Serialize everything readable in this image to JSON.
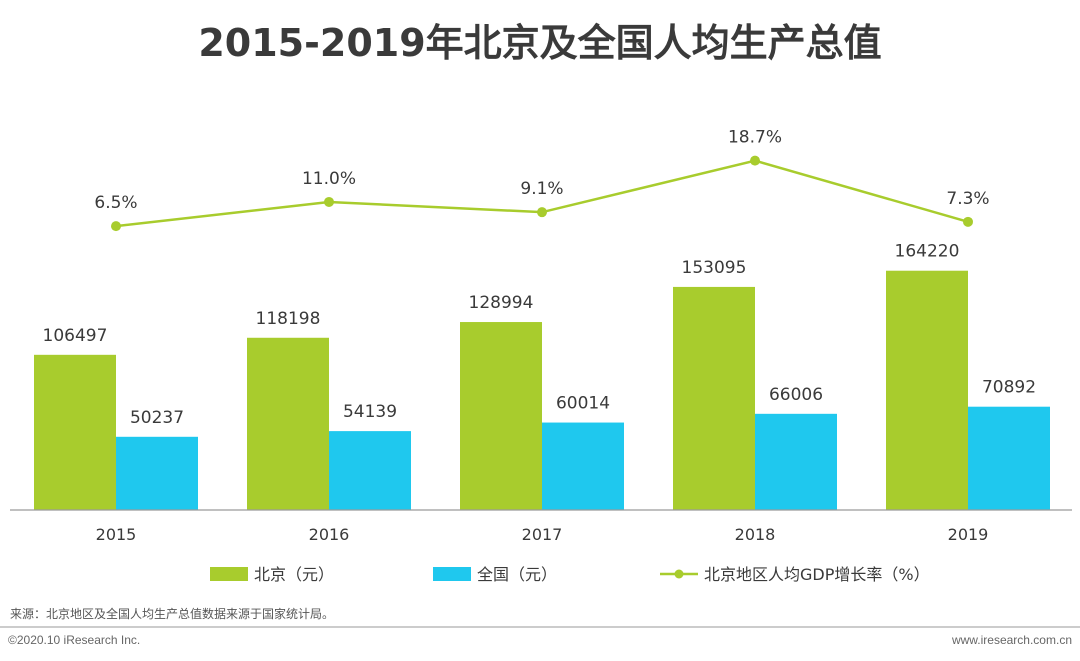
{
  "chart_data": {
    "type": "bar",
    "title": "2015-2019年北京及全国人均生产总值",
    "categories": [
      "2015",
      "2016",
      "2017",
      "2018",
      "2019"
    ],
    "series": [
      {
        "name": "北京（元）",
        "kind": "bar",
        "color": "#a8cc2d",
        "values": [
          106497,
          118198,
          128994,
          153095,
          164220
        ]
      },
      {
        "name": "全国（元）",
        "kind": "bar",
        "color": "#1fc8ee",
        "values": [
          50237,
          54139,
          60014,
          66006,
          70892
        ]
      },
      {
        "name": "北京地区人均GDP增长率（%）",
        "kind": "line",
        "color": "#a8cc2d",
        "values": [
          6.5,
          11.0,
          9.1,
          18.7,
          7.3
        ],
        "labels": [
          "6.5%",
          "11.0%",
          "9.1%",
          "18.7%",
          "7.3%"
        ]
      }
    ],
    "bar_ylim": [
      0,
      175000
    ],
    "line_ylim": [
      0,
      30
    ],
    "xlabel": "",
    "ylabel": "",
    "grid": false,
    "legend_position": "bottom"
  },
  "source": "来源：北京地区及全国人均生产总值数据来源于国家统计局。",
  "footer": {
    "copyright": "©2020.10 iResearch Inc.",
    "website": "www.iresearch.com.cn"
  }
}
